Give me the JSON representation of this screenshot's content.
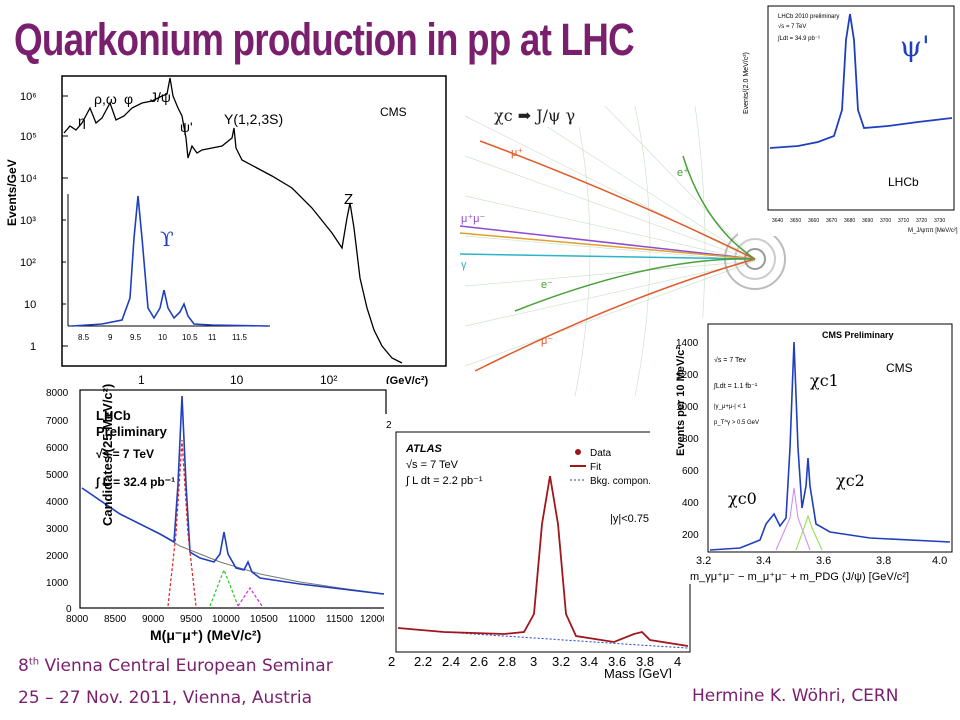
{
  "title": "Quarkonium production in pp at LHC",
  "footer": {
    "seminar_num": "8",
    "seminar_sup": "th",
    "seminar_rest": "Vienna Central European Seminar",
    "dates": "25 – 27 Nov. 2011, Vienna, Austria",
    "author": "Hermine K. Wöhri, CERN"
  },
  "panels": {
    "cms_dimuon": {
      "label": "CMS",
      "ylabel": "Events/GeV",
      "xlabel": "(GeV/c²)",
      "peaks": [
        "η",
        "ρ,ω",
        "φ",
        "J/ψ",
        "ψ'",
        "Υ(1,2,3S)",
        "Z"
      ],
      "y_ticks": [
        "10⁶",
        "10⁵",
        "10⁴",
        "10³",
        "10²",
        "10",
        "1"
      ],
      "x_ticks": [
        "1",
        "10",
        "10²"
      ],
      "inset_label": "ϒ",
      "inset_ticks": [
        "8.5",
        "9",
        "9.5",
        "10",
        "10.5",
        "11",
        "11.5"
      ]
    },
    "chic_event": {
      "label": "χc ➡ J/ψ γ",
      "tracks": [
        "μ⁺",
        "e⁺",
        "μ⁺μ⁻",
        "γ",
        "e⁻",
        "μ⁻"
      ]
    },
    "lhcb_psi": {
      "label": "ψ'",
      "experiment": "LHCb",
      "header": "LHCb 2010 preliminary",
      "energy": "√s = 7 TeV",
      "lumi": "∫Ldt = 34.9 pb⁻¹",
      "ylabel": "Events/(2.0 MeV/c²)",
      "xlabel": "M_J/ψππ [MeV/c²]",
      "y_ticks": [
        "4000",
        "3800",
        "3600",
        "3400",
        "3200",
        "3000",
        "2800",
        "2600",
        "2400",
        "2200",
        "2000"
      ],
      "x_ticks": [
        "3640",
        "3650",
        "3660",
        "3670",
        "3680",
        "3690",
        "3700",
        "3710",
        "3720",
        "3730",
        "3740"
      ]
    },
    "lhcb_upsilon": {
      "header1": "LHCb",
      "header2": "Preliminary",
      "energy": "√s = 7 TeV",
      "lumi": "∫ L = 32.4 pb⁻¹",
      "ylabel": "Candidates/(25 MeV/c²)",
      "xlabel": "M(μ⁻μ⁺) (MeV/c²)",
      "y_ticks": [
        "8000",
        "7000",
        "6000",
        "5000",
        "4000",
        "3000",
        "2000",
        "1000",
        "0"
      ],
      "x_ticks": [
        "8000",
        "8500",
        "9000",
        "9500",
        "10000",
        "10500",
        "11000",
        "11500",
        "12000"
      ]
    },
    "atlas": {
      "header": "ATLAS",
      "energy": "√s = 7 TeV",
      "lumi": "∫ L dt = 2.2 pb⁻¹",
      "legend": [
        "Data",
        "Fit",
        "Bkg. compon.²"
      ],
      "cut": "|y|<0.75",
      "corner_tick": "2",
      "xlabel": "Mass [GeV]",
      "x_ticks": [
        "2",
        "2.2",
        "2.4",
        "2.6",
        "2.8",
        "3",
        "3.2",
        "3.4",
        "3.6",
        "3.8",
        "4"
      ]
    },
    "cms_chic": {
      "label": "CMS",
      "header": "CMS Preliminary",
      "energy": "√s = 7 Tev",
      "lumi": "∫Ldt = 1.1 fb⁻¹",
      "cut1": "|y_μ+μ-| < 1",
      "cut2": "p_T^γ > 0.5 GeV",
      "ylabel": "Events per 10 MeV/c²",
      "xlabel": "m_γμ⁺μ⁻ − m_μ⁺μ⁻ + m_PDG (J/ψ) [GeV/c²]",
      "chi_c1": "χc1",
      "chi_c2": "χc2",
      "chi_c0": "χc0",
      "y_ticks": [
        "1400",
        "1200",
        "1000",
        "800",
        "600",
        "400",
        "200"
      ],
      "x_ticks": [
        "3.2",
        "3.4",
        "3.6",
        "3.8",
        "4.0"
      ]
    }
  },
  "colors": {
    "title": "#7a1f6e",
    "fit": "#1f3fbf",
    "atlas_fit": "#a0161c",
    "muon": "#e05a2a",
    "electron": "#4aa03a",
    "photon": "#2bb4c9",
    "dimuon": "#8d4bd1"
  }
}
